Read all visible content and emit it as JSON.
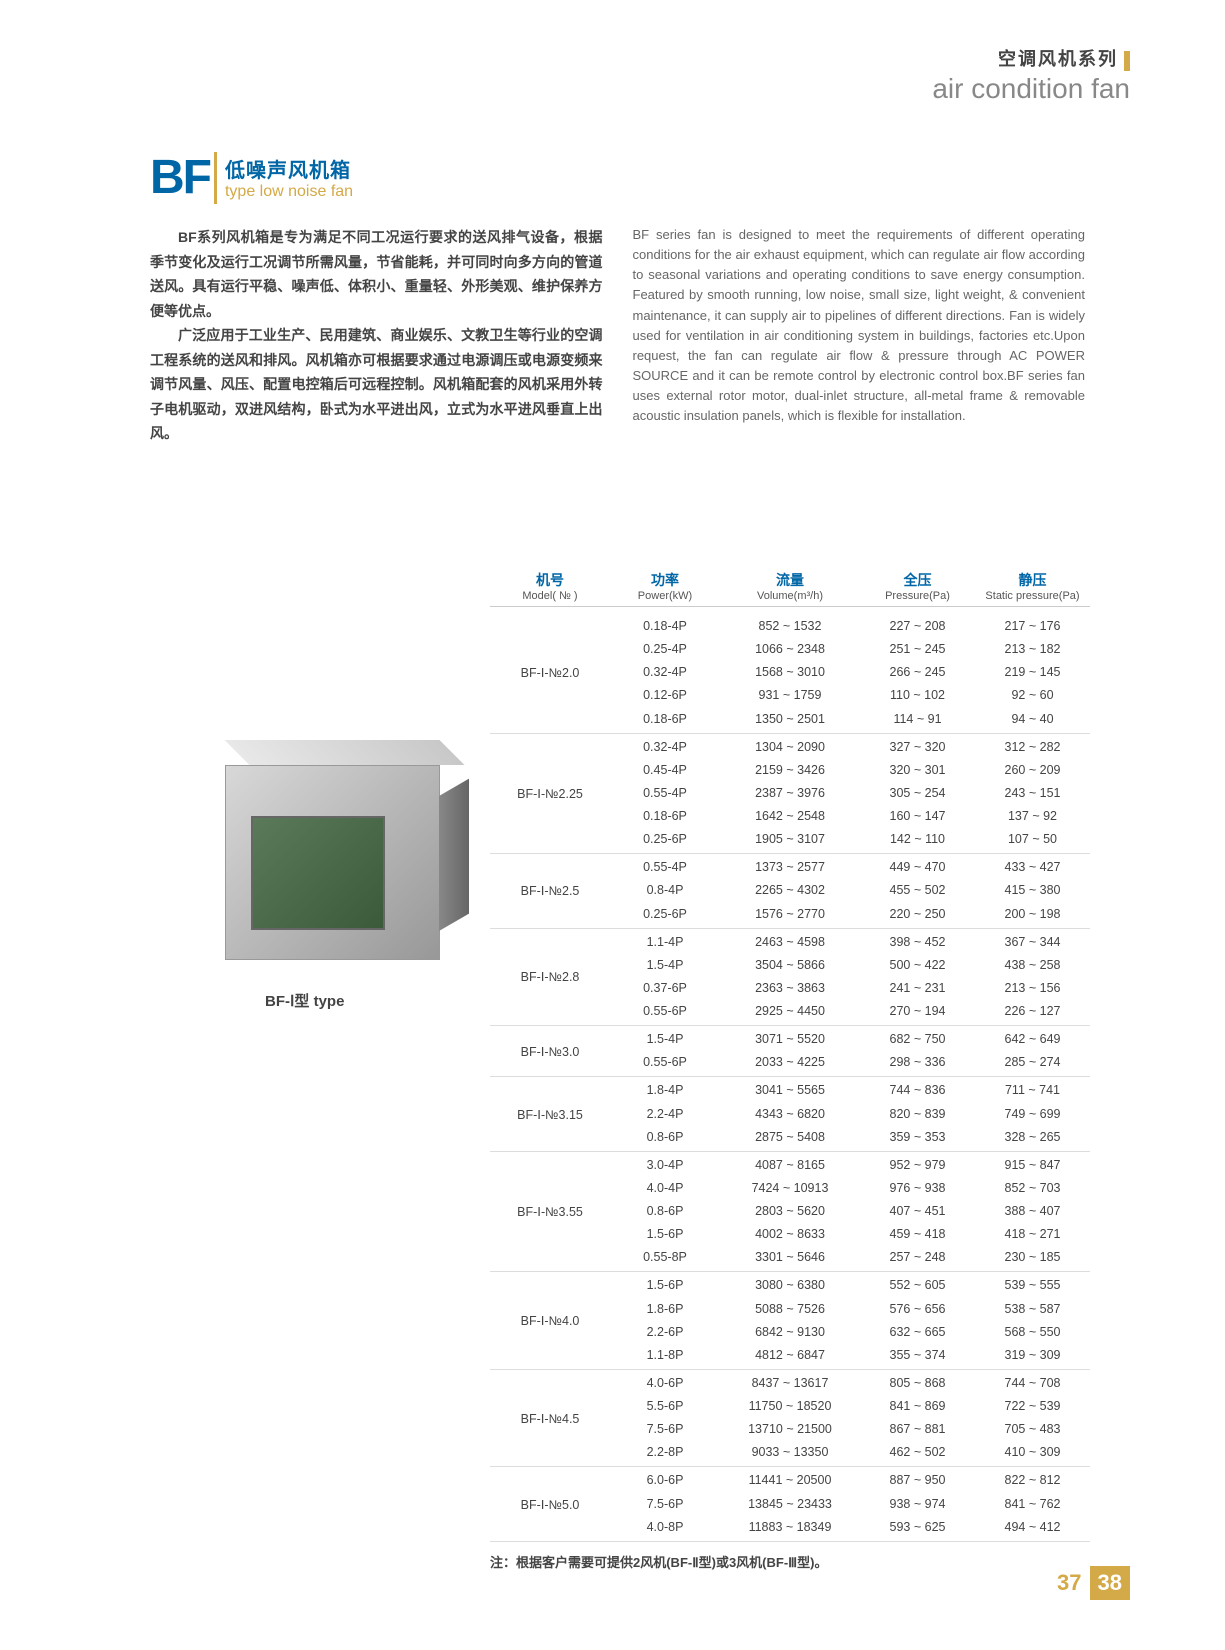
{
  "header": {
    "category_cn": "空调风机系列",
    "category_en": "air condition fan"
  },
  "title": {
    "code": "BF",
    "name_cn": "低噪声风机箱",
    "name_en": "type low noise fan"
  },
  "description_cn_p1": "BF系列风机箱是专为满足不同工况运行要求的送风排气设备，根据季节变化及运行工况调节所需风量，节省能耗，并可同时向多方向的管道送风。具有运行平稳、噪声低、体积小、重量轻、外形美观、维护保养方便等优点。",
  "description_cn_p2": "广泛应用于工业生产、民用建筑、商业娱乐、文教卫生等行业的空调工程系统的送风和排风。风机箱亦可根据要求通过电源调压或电源变频来调节风量、风压、配置电控箱后可远程控制。风机箱配套的风机采用外转子电机驱动，双进风结构，卧式为水平进出风，立式为水平进风垂直上出风。",
  "description_en": "BF series fan is designed to meet the requirements of different operating conditions for the air exhaust equipment, which can regulate air flow according to seasonal variations and operating conditions to save energy consumption. Featured by smooth running, low noise, small size, light weight, & convenient maintenance, it can supply air to pipelines of different directions. Fan is widely used for ventilation in air conditioning system in buildings, factories etc.Upon request, the fan can regulate air flow & pressure through AC POWER SOURCE and it can be remote control by electronic control box.BF series fan uses external rotor motor, dual-inlet structure, all-metal frame & removable acoustic insulation panels, which is flexible for installation.",
  "product_caption": "BF-Ⅰ型 type",
  "table": {
    "headers": {
      "model": {
        "cn": "机号",
        "en": "Model( № )"
      },
      "power": {
        "cn": "功率",
        "en": "Power(kW)"
      },
      "volume": {
        "cn": "流量",
        "en": "Volume(m³/h)"
      },
      "pressure": {
        "cn": "全压",
        "en": "Pressure(Pa)"
      },
      "static": {
        "cn": "静压",
        "en": "Static pressure(Pa)"
      }
    },
    "groups": [
      {
        "model": "BF-Ⅰ-№2.0",
        "rows": [
          {
            "power": "0.18-4P",
            "volume": "852 ~ 1532",
            "pressure": "227 ~ 208",
            "static": "217 ~ 176"
          },
          {
            "power": "0.25-4P",
            "volume": "1066 ~ 2348",
            "pressure": "251 ~ 245",
            "static": "213 ~ 182"
          },
          {
            "power": "0.32-4P",
            "volume": "1568 ~ 3010",
            "pressure": "266 ~ 245",
            "static": "219 ~ 145"
          },
          {
            "power": "0.12-6P",
            "volume": "931 ~ 1759",
            "pressure": "110 ~ 102",
            "static": "92 ~ 60"
          },
          {
            "power": "0.18-6P",
            "volume": "1350 ~ 2501",
            "pressure": "114 ~ 91",
            "static": "94 ~ 40"
          }
        ]
      },
      {
        "model": "BF-Ⅰ-№2.25",
        "rows": [
          {
            "power": "0.32-4P",
            "volume": "1304 ~ 2090",
            "pressure": "327 ~ 320",
            "static": "312 ~ 282"
          },
          {
            "power": "0.45-4P",
            "volume": "2159 ~ 3426",
            "pressure": "320 ~ 301",
            "static": "260 ~ 209"
          },
          {
            "power": "0.55-4P",
            "volume": "2387 ~ 3976",
            "pressure": "305 ~ 254",
            "static": "243 ~ 151"
          },
          {
            "power": "0.18-6P",
            "volume": "1642 ~ 2548",
            "pressure": "160 ~ 147",
            "static": "137 ~ 92"
          },
          {
            "power": "0.25-6P",
            "volume": "1905 ~ 3107",
            "pressure": "142 ~ 110",
            "static": "107 ~ 50"
          }
        ]
      },
      {
        "model": "BF-Ⅰ-№2.5",
        "rows": [
          {
            "power": "0.55-4P",
            "volume": "1373 ~ 2577",
            "pressure": "449 ~ 470",
            "static": "433 ~ 427"
          },
          {
            "power": "0.8-4P",
            "volume": "2265 ~ 4302",
            "pressure": "455 ~ 502",
            "static": "415 ~ 380"
          },
          {
            "power": "0.25-6P",
            "volume": "1576 ~ 2770",
            "pressure": "220 ~ 250",
            "static": "200 ~ 198"
          }
        ]
      },
      {
        "model": "BF-Ⅰ-№2.8",
        "rows": [
          {
            "power": "1.1-4P",
            "volume": "2463 ~ 4598",
            "pressure": "398 ~ 452",
            "static": "367 ~ 344"
          },
          {
            "power": "1.5-4P",
            "volume": "3504 ~ 5866",
            "pressure": "500 ~ 422",
            "static": "438 ~ 258"
          },
          {
            "power": "0.37-6P",
            "volume": "2363 ~ 3863",
            "pressure": "241 ~ 231",
            "static": "213 ~ 156"
          },
          {
            "power": "0.55-6P",
            "volume": "2925 ~ 4450",
            "pressure": "270 ~ 194",
            "static": "226 ~ 127"
          }
        ]
      },
      {
        "model": "BF-Ⅰ-№3.0",
        "rows": [
          {
            "power": "1.5-4P",
            "volume": "3071 ~ 5520",
            "pressure": "682 ~ 750",
            "static": "642 ~ 649"
          },
          {
            "power": "0.55-6P",
            "volume": "2033 ~ 4225",
            "pressure": "298 ~ 336",
            "static": "285 ~ 274"
          }
        ]
      },
      {
        "model": "BF-Ⅰ-№3.15",
        "rows": [
          {
            "power": "1.8-4P",
            "volume": "3041 ~ 5565",
            "pressure": "744 ~ 836",
            "static": "711 ~ 741"
          },
          {
            "power": "2.2-4P",
            "volume": "4343 ~ 6820",
            "pressure": "820 ~ 839",
            "static": "749 ~ 699"
          },
          {
            "power": "0.8-6P",
            "volume": "2875 ~ 5408",
            "pressure": "359 ~ 353",
            "static": "328 ~ 265"
          }
        ]
      },
      {
        "model": "BF-Ⅰ-№3.55",
        "rows": [
          {
            "power": "3.0-4P",
            "volume": "4087 ~ 8165",
            "pressure": "952 ~ 979",
            "static": "915 ~ 847"
          },
          {
            "power": "4.0-4P",
            "volume": "7424 ~ 10913",
            "pressure": "976 ~ 938",
            "static": "852 ~ 703"
          },
          {
            "power": "0.8-6P",
            "volume": "2803 ~ 5620",
            "pressure": "407 ~ 451",
            "static": "388 ~ 407"
          },
          {
            "power": "1.5-6P",
            "volume": "4002 ~ 8633",
            "pressure": "459 ~ 418",
            "static": "418 ~ 271"
          },
          {
            "power": "0.55-8P",
            "volume": "3301 ~ 5646",
            "pressure": "257 ~ 248",
            "static": "230 ~ 185"
          }
        ]
      },
      {
        "model": "BF-Ⅰ-№4.0",
        "rows": [
          {
            "power": "1.5-6P",
            "volume": "3080 ~ 6380",
            "pressure": "552 ~ 605",
            "static": "539 ~ 555"
          },
          {
            "power": "1.8-6P",
            "volume": "5088 ~ 7526",
            "pressure": "576 ~ 656",
            "static": "538 ~ 587"
          },
          {
            "power": "2.2-6P",
            "volume": "6842 ~ 9130",
            "pressure": "632 ~ 665",
            "static": "568 ~ 550"
          },
          {
            "power": "1.1-8P",
            "volume": "4812 ~ 6847",
            "pressure": "355 ~ 374",
            "static": "319 ~ 309"
          }
        ]
      },
      {
        "model": "BF-Ⅰ-№4.5",
        "rows": [
          {
            "power": "4.0-6P",
            "volume": "8437 ~ 13617",
            "pressure": "805 ~ 868",
            "static": "744 ~ 708"
          },
          {
            "power": "5.5-6P",
            "volume": "11750 ~ 18520",
            "pressure": "841 ~ 869",
            "static": "722 ~ 539"
          },
          {
            "power": "7.5-6P",
            "volume": "13710 ~ 21500",
            "pressure": "867 ~ 881",
            "static": "705 ~ 483"
          },
          {
            "power": "2.2-8P",
            "volume": "9033 ~ 13350",
            "pressure": "462 ~ 502",
            "static": "410 ~ 309"
          }
        ]
      },
      {
        "model": "BF-Ⅰ-№5.0",
        "rows": [
          {
            "power": "6.0-6P",
            "volume": "11441 ~ 20500",
            "pressure": "887 ~ 950",
            "static": "822 ~ 812"
          },
          {
            "power": "7.5-6P",
            "volume": "13845 ~ 23433",
            "pressure": "938 ~ 974",
            "static": "841 ~ 762"
          },
          {
            "power": "4.0-8P",
            "volume": "11883 ~ 18349",
            "pressure": "593 ~ 625",
            "static": "494 ~ 412"
          }
        ]
      }
    ],
    "note": "注：根据客户需要可提供2风机(BF-Ⅱ型)或3风机(BF-Ⅲ型)。"
  },
  "footer": {
    "page_left": "37",
    "page_right": "38"
  }
}
